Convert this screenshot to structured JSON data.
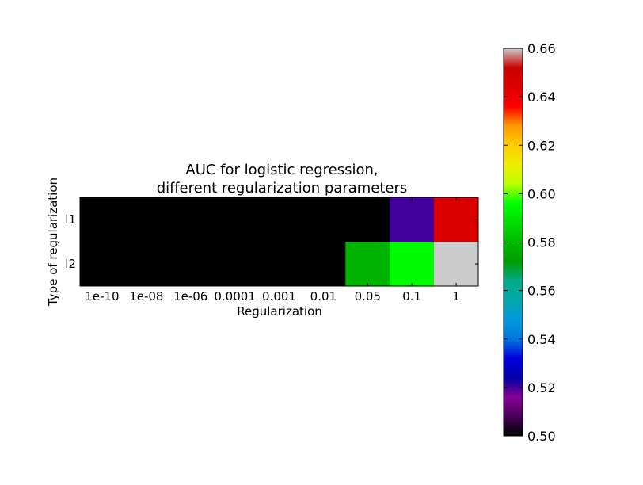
{
  "chart_data": {
    "type": "heatmap",
    "title": "AUC for logistic regression,\ndifferent regularization parameters",
    "xlabel": "Regularization",
    "ylabel": "Type of regularization",
    "x_categories": [
      "1e-10",
      "1e-08",
      "1e-06",
      "0.0001",
      "0.001",
      "0.01",
      "0.05",
      "0.1",
      "1"
    ],
    "y_categories": [
      "l1",
      "l2"
    ],
    "values": [
      [
        0.5,
        0.5,
        0.5,
        0.5,
        0.5,
        0.5,
        0.5,
        0.52,
        0.645
      ],
      [
        0.5,
        0.5,
        0.5,
        0.5,
        0.5,
        0.5,
        0.578,
        0.595,
        0.66
      ]
    ],
    "colorbar": {
      "min": 0.5,
      "max": 0.66,
      "ticks": [
        "0.50",
        "0.52",
        "0.54",
        "0.56",
        "0.58",
        "0.60",
        "0.62",
        "0.64",
        "0.66"
      ]
    },
    "colormap": "nipy_spectral",
    "grid": false
  }
}
